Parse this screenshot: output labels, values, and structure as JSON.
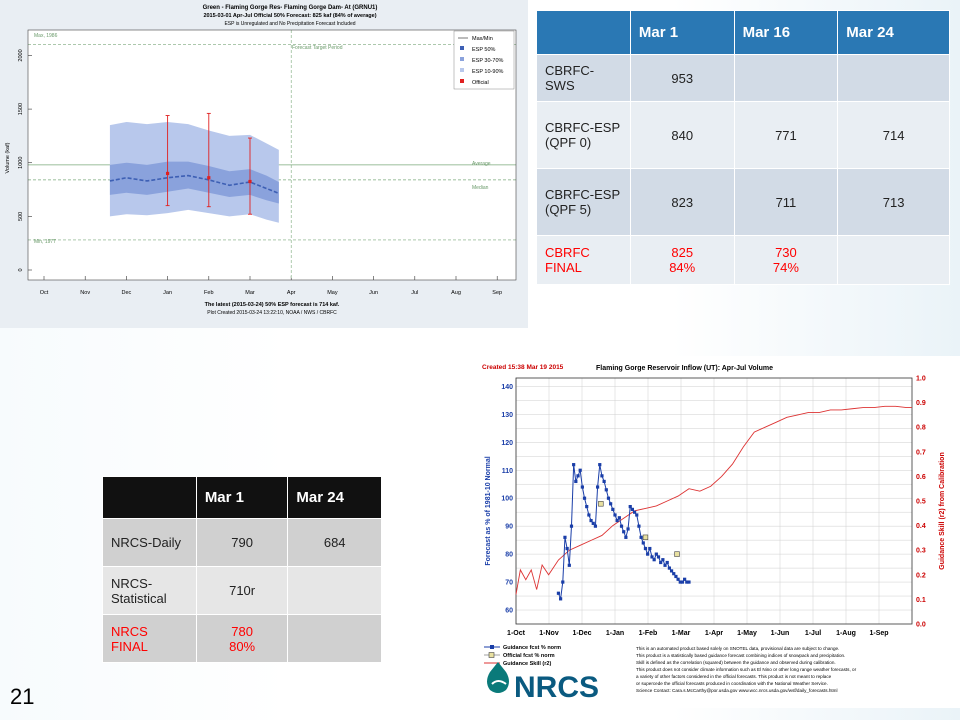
{
  "slide": {
    "number": "21"
  },
  "cbrfc_chart": {
    "title_line1": "Green - Flaming Gorge Res- Flaming Gorge Dam- At (GRNU1)",
    "title_line2": "2015-03-01 Apr-Jul Official 50% Forecast: 825 kaf (84% of average)",
    "title_line3": "ESP is Unregulated and No Precipitation Forecast Included",
    "ylabel": "Volume (kaf)",
    "footer_line1": "The latest (2015-03-24) 50% ESP forecast is 714 kaf.",
    "footer_line2": "Plot Created 2015-03-24 13:22:10, NOAA / NWS / CBRFC",
    "max_label": "Max, 1986",
    "min_label": "Min, 1977",
    "average_label": "Average",
    "median_label": "Median",
    "target_period_label": "Forecast Target Period",
    "legend": {
      "title": "Max/Min",
      "items": [
        "ESP 50%",
        "ESP 30-70%",
        "ESP 10-90%",
        "Official"
      ]
    }
  },
  "cbrfc_table": {
    "headers": [
      "",
      "Mar 1",
      "Mar 16",
      "Mar 24"
    ],
    "rows": [
      {
        "label": "CBRFC-SWS",
        "c1": "953",
        "c2": "",
        "c3": ""
      },
      {
        "label": "CBRFC-ESP (QPF 0)",
        "c1": "840",
        "c2": "771",
        "c3": "714"
      },
      {
        "label": "CBRFC-ESP (QPF 5)",
        "c1": "823",
        "c2": "711",
        "c3": "713"
      },
      {
        "label": "CBRFC FINAL",
        "c1a": "825",
        "c1b": "84%",
        "c2a": "730",
        "c2b": "74%",
        "c3": ""
      }
    ]
  },
  "nrcs_table": {
    "headers": [
      "",
      "Mar 1",
      "Mar 24"
    ],
    "rows": [
      {
        "label": "NRCS-Daily",
        "c1": "790",
        "c2": "684"
      },
      {
        "label": "NRCS-Statistical",
        "c1": "710r",
        "c2": ""
      },
      {
        "label": "NRCS FINAL",
        "c1a": "780",
        "c1b": "80%",
        "c2": ""
      }
    ]
  },
  "nrcs_chart": {
    "created": "Created 15:38 Mar 19 2015",
    "title": "Flaming Gorge Reservoir Inflow (UT): Apr-Jul Volume",
    "ylabel_left": "Forecast as % of 1981-10 Normal",
    "ylabel_right": "Guidance Skill (r2) from Calibration",
    "legend": [
      "Guidance fcst % norm",
      "Official fcst % norm",
      "Guidance Skill (r2)"
    ],
    "disclaimer": [
      "This is an automated product based solely on SNOTEL data, provisional data are subject to change.",
      "This product is a statistically based guidance forecast combining indices of snowpack and precipitation.",
      "Skill is defined as the correlation (squared) between the guidance and observed during calibration.",
      "This product does not consider climate information such as El Nino or other long range weather forecasts, or",
      "a variety of other factors considered in the official forecasts. This product is not meant to replace",
      "or supercede the official forecasts produced in coordination with the National Weather Service.",
      "Science Contact: Cara.s.McCarthy@por.usda.gov www.wcc.nrcs.usda.gov/wsf/daily_forecasts.html"
    ],
    "logo_text": "NRCS"
  },
  "chart_data": [
    {
      "type": "area",
      "title": "Green - Flaming Gorge Res- Flaming Gorge Dam- At (GRNU1)",
      "xlabel": "",
      "ylabel": "Volume (kaf)",
      "x_ticks": [
        "Oct",
        "Nov",
        "Dec",
        "Jan",
        "Feb",
        "Mar",
        "Apr",
        "May",
        "Jun",
        "Jul",
        "Aug",
        "Sep"
      ],
      "y_ticks": [
        0,
        500,
        1000,
        1500,
        2000
      ],
      "ylim": [
        0,
        2200
      ],
      "reference_lines": {
        "max": 2100,
        "average": 980,
        "median": 840,
        "min": 280
      },
      "series": [
        {
          "name": "ESP 50%",
          "x_month": [
            1.6,
            2.0,
            2.5,
            3.0,
            3.5,
            4.0,
            4.5,
            5.0,
            5.4,
            5.7
          ],
          "values": [
            830,
            860,
            830,
            860,
            880,
            840,
            790,
            820,
            760,
            714
          ]
        },
        {
          "name": "ESP 30-70%",
          "low": [
            700,
            720,
            700,
            730,
            760,
            720,
            680,
            700,
            650,
            620
          ],
          "high": [
            980,
            1000,
            980,
            1010,
            1010,
            970,
            920,
            940,
            880,
            820
          ]
        },
        {
          "name": "ESP 10-90%",
          "low": [
            500,
            520,
            510,
            530,
            560,
            530,
            500,
            520,
            470,
            440
          ],
          "high": [
            1350,
            1380,
            1360,
            1380,
            1360,
            1300,
            1250,
            1260,
            1180,
            1120
          ]
        },
        {
          "name": "Official",
          "x_month": [
            3.0,
            4.0,
            5.0
          ],
          "values": [
            900,
            860,
            825
          ],
          "low": [
            600,
            590,
            520
          ],
          "high": [
            1440,
            1460,
            1230
          ]
        }
      ]
    },
    {
      "type": "line",
      "title": "Flaming Gorge Reservoir Inflow (UT): Apr-Jul Volume",
      "x_ticks": [
        "1-Oct",
        "1-Nov",
        "1-Dec",
        "1-Jan",
        "1-Feb",
        "1-Mar",
        "1-Apr",
        "1-May",
        "1-Jun",
        "1-Jul",
        "1-Aug",
        "1-Sep"
      ],
      "y_ticks_left": [
        60,
        70,
        80,
        90,
        100,
        110,
        120,
        130,
        140
      ],
      "y_ticks_right": [
        0.0,
        0.1,
        0.2,
        0.3,
        0.4,
        0.5,
        0.6,
        0.7,
        0.8,
        0.9,
        1.0
      ],
      "ylim_left": [
        55,
        143
      ],
      "ylim_right": [
        0.0,
        1.0
      ],
      "series": [
        {
          "name": "Guidance fcst % norm",
          "x_day": [
            40,
            42,
            44,
            46,
            48,
            50,
            52,
            54,
            56,
            58,
            60,
            62,
            64,
            66,
            68,
            70,
            72,
            74,
            76,
            78,
            80,
            82,
            84,
            86,
            88,
            90,
            92,
            94,
            96,
            98,
            100,
            102,
            104,
            106,
            108,
            110,
            112,
            114,
            116,
            118,
            120,
            122,
            124,
            126,
            128,
            130,
            132,
            134,
            136,
            138,
            140,
            142,
            144,
            146,
            148,
            150,
            152,
            154,
            156,
            158,
            160
          ],
          "values": [
            66,
            64,
            70,
            86,
            82,
            76,
            90,
            112,
            106,
            108,
            110,
            104,
            100,
            97,
            94,
            92,
            91,
            90,
            104,
            112,
            108,
            106,
            103,
            100,
            98,
            96,
            94,
            92,
            93,
            90,
            88,
            86,
            89,
            97,
            96,
            95,
            94,
            90,
            86,
            84,
            82,
            80,
            82,
            79,
            78,
            80,
            79,
            77,
            78,
            76,
            77,
            75,
            74,
            73,
            72,
            71,
            70,
            70,
            71,
            70,
            70
          ]
        },
        {
          "name": "Official fcst % norm",
          "x_day": [
            79,
            120,
            149
          ],
          "values": [
            98,
            86,
            80
          ]
        },
        {
          "name": "Guidance Skill (r2)",
          "axis": "right",
          "x_day": [
            1,
            5,
            10,
            15,
            20,
            25,
            31,
            40,
            50,
            60,
            70,
            80,
            90,
            100,
            110,
            120,
            130,
            140,
            150,
            160,
            170,
            180,
            190,
            200,
            210,
            220,
            230,
            240,
            250,
            260,
            270,
            280,
            290,
            300,
            310,
            320,
            330,
            340,
            350,
            360,
            365
          ],
          "values": [
            0.12,
            0.22,
            0.18,
            0.22,
            0.14,
            0.24,
            0.2,
            0.26,
            0.3,
            0.32,
            0.34,
            0.36,
            0.4,
            0.43,
            0.46,
            0.47,
            0.48,
            0.5,
            0.52,
            0.55,
            0.54,
            0.56,
            0.6,
            0.65,
            0.72,
            0.78,
            0.8,
            0.82,
            0.84,
            0.85,
            0.86,
            0.86,
            0.87,
            0.87,
            0.875,
            0.88,
            0.88,
            0.885,
            0.885,
            0.88,
            0.88
          ]
        }
      ]
    }
  ]
}
